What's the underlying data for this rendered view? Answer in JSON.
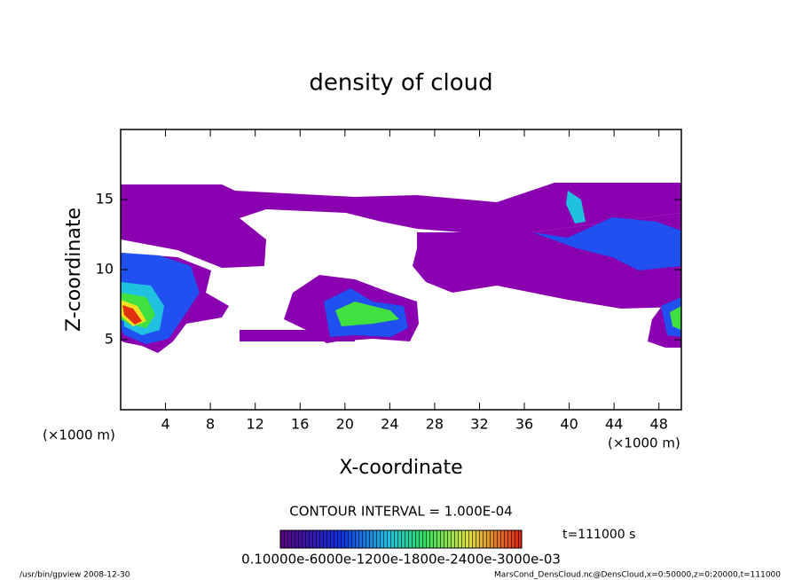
{
  "chart_data": {
    "type": "contour",
    "title": "density of cloud",
    "xlabel": "X-coordinate",
    "ylabel": "Z-coordinate",
    "x_unit_labels": [
      "(×1000 m)",
      "(×1000 m)"
    ],
    "xlim": [
      0,
      50
    ],
    "ylim": [
      0,
      20
    ],
    "xticks": [
      4,
      8,
      12,
      16,
      20,
      24,
      28,
      32,
      36,
      40,
      44,
      48
    ],
    "yticks": [
      5,
      10,
      15
    ],
    "contour_interval": "CONTOUR INTERVAL = 1.000E-04",
    "time_label": "t=111000 s",
    "colorbar_labels": "0.10000e-6000e-1200e-1800e-2400e-3000e-03",
    "footer_left": "/usr/bin/gpview   2008-12-30",
    "footer_right": "MarsCond_DensCloud.nc@DensCloud,x=0:50000,z=0:20000,t=111000"
  }
}
